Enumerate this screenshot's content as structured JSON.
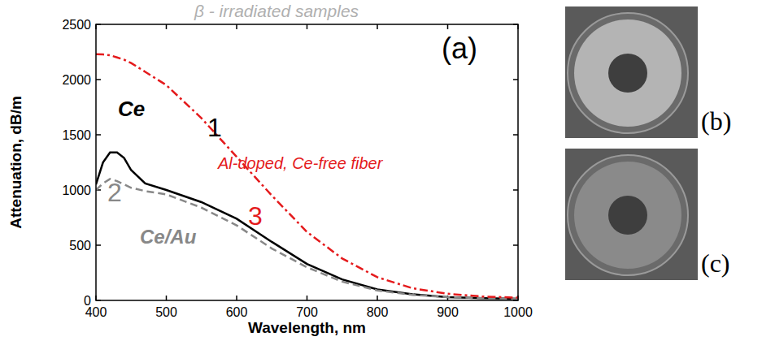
{
  "chart_data": {
    "type": "line",
    "title": "β - irradiated samples",
    "x_label": "Wavelength, nm",
    "y_label": "Attenuation, dB/m",
    "panel_labels": [
      "(a)",
      "(b)",
      "(c)"
    ],
    "annotations": [
      "1",
      "2",
      "3"
    ],
    "x": [
      400,
      410,
      420,
      430,
      440,
      450,
      470,
      500,
      550,
      600,
      650,
      700,
      750,
      800,
      850,
      900,
      950,
      1000
    ],
    "series": [
      {
        "name": "Ce",
        "color": "#000000",
        "line_style": "solid",
        "values": [
          1050,
          1250,
          1340,
          1340,
          1290,
          1180,
          1060,
          1000,
          890,
          740,
          530,
          330,
          190,
          100,
          55,
          30,
          20,
          15
        ]
      },
      {
        "name": "Ce/Au",
        "color": "#888888",
        "line_style": "dashed",
        "values": [
          1000,
          1060,
          1100,
          1080,
          1050,
          1020,
          990,
          960,
          840,
          680,
          470,
          300,
          170,
          90,
          50,
          30,
          20,
          15
        ]
      },
      {
        "name": "Al-doped, Ce-free fiber",
        "color": "#e41a1c",
        "line_style": "dashdot",
        "values": [
          2230,
          2228,
          2220,
          2200,
          2180,
          2150,
          2070,
          1950,
          1650,
          1300,
          950,
          620,
          380,
          210,
          110,
          60,
          35,
          25
        ]
      }
    ],
    "xlim": [
      400,
      1000
    ],
    "xticks": [
      400,
      500,
      600,
      700,
      800,
      900,
      1000
    ],
    "ylim": [
      0,
      2500
    ],
    "yticks": [
      0,
      500,
      1000,
      1500,
      2000,
      2500
    ],
    "grid": false
  }
}
